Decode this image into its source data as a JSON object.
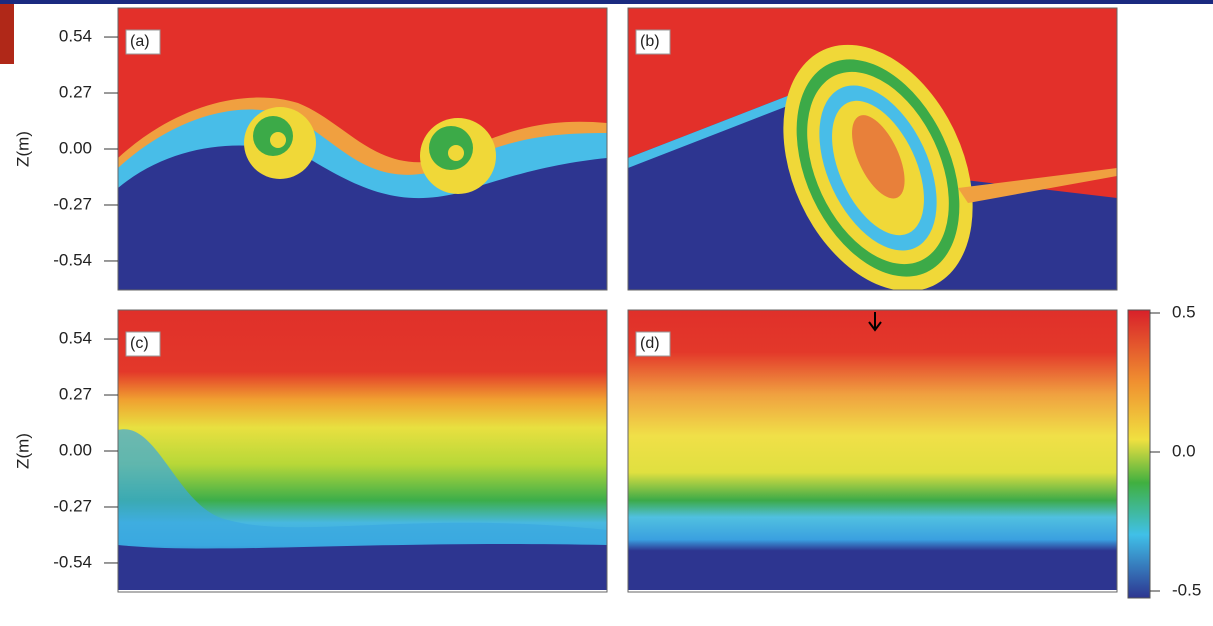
{
  "panels": [
    {
      "label": "(a)"
    },
    {
      "label": "(b)"
    },
    {
      "label": "(c)"
    },
    {
      "label": "(d)"
    }
  ],
  "axis": {
    "label": "Z(m)",
    "ylim": [
      -0.68,
      0.68
    ],
    "yticks": [
      0.54,
      0.27,
      {
        "value": 0,
        "label": "0.00"
      },
      -0.27,
      -0.54
    ]
  },
  "colorbar": {
    "lim": [
      -0.5,
      0.5
    ],
    "ticks": [
      0.5,
      {
        "value": 0,
        "label": "0.0"
      },
      -0.5
    ]
  }
}
